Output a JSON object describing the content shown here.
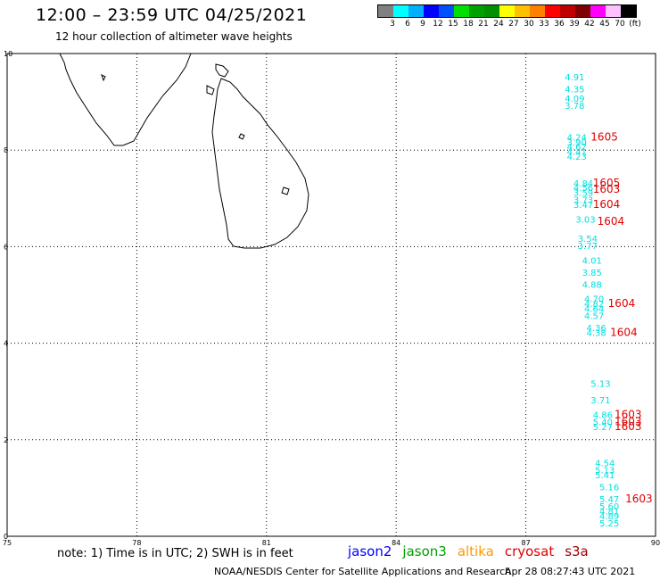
{
  "header": {
    "title": "12:00 – 23:59 UTC 04/25/2021",
    "subtitle": "12 hour collection of altimeter wave heights"
  },
  "legend": {
    "colors": [
      "#808080",
      "#00ffff",
      "#00b0ff",
      "#0000ff",
      "#0050ff",
      "#00e000",
      "#00a000",
      "#009000",
      "#ffff00",
      "#ffc000",
      "#ff8000",
      "#ff0000",
      "#c00000",
      "#800000",
      "#ff00ff",
      "#ffc0ff",
      "#000000"
    ],
    "labels": [
      "3",
      "6",
      "9",
      "12",
      "15",
      "18",
      "21",
      "24",
      "27",
      "30",
      "33",
      "36",
      "39",
      "42",
      "45",
      "70",
      "(ft)"
    ]
  },
  "map": {
    "lon_range": [
      75,
      90
    ],
    "lat_range": [
      0,
      10
    ],
    "x_ticks": [
      "75",
      "78",
      "81",
      "84",
      "87",
      "90"
    ],
    "y_ticks": [
      "0",
      "2",
      "4",
      "6",
      "8",
      "10"
    ],
    "grid": true,
    "swh_readings": [
      {
        "lon": 87.9,
        "lat": 9.45,
        "text": "4.91",
        "color": "#00e0e0"
      },
      {
        "lon": 87.9,
        "lat": 9.2,
        "text": "4.35",
        "color": "#00e0e0"
      },
      {
        "lon": 87.9,
        "lat": 9.0,
        "text": "4.09",
        "color": "#00e0e0"
      },
      {
        "lon": 87.9,
        "lat": 8.85,
        "text": "3.78",
        "color": "#00e0e0"
      },
      {
        "lon": 87.95,
        "lat": 8.2,
        "text": "4.24",
        "color": "#00e0e0"
      },
      {
        "lon": 87.95,
        "lat": 8.1,
        "text": "3.90",
        "color": "#00e0e0"
      },
      {
        "lon": 87.95,
        "lat": 8.0,
        "text": "4.62",
        "color": "#00e0e0"
      },
      {
        "lon": 87.95,
        "lat": 7.9,
        "text": "4.41",
        "color": "#00e0e0"
      },
      {
        "lon": 87.95,
        "lat": 7.8,
        "text": "4.23",
        "color": "#00e0e0"
      },
      {
        "lon": 88.1,
        "lat": 7.25,
        "text": "4.84",
        "color": "#00e0e0"
      },
      {
        "lon": 88.1,
        "lat": 7.15,
        "text": "4.56",
        "color": "#00e0e0"
      },
      {
        "lon": 88.1,
        "lat": 7.05,
        "text": "3.59",
        "color": "#00e0e0"
      },
      {
        "lon": 88.1,
        "lat": 6.9,
        "text": "3.73",
        "color": "#00e0e0"
      },
      {
        "lon": 88.1,
        "lat": 6.8,
        "text": "3.47",
        "color": "#00e0e0"
      },
      {
        "lon": 88.15,
        "lat": 6.5,
        "text": "3.03",
        "color": "#00e0e0"
      },
      {
        "lon": 88.2,
        "lat": 6.1,
        "text": "3.54",
        "color": "#00e0e0"
      },
      {
        "lon": 88.2,
        "lat": 5.95,
        "text": "3.77",
        "color": "#00e0e0"
      },
      {
        "lon": 88.3,
        "lat": 5.65,
        "text": "4.01",
        "color": "#00e0e0"
      },
      {
        "lon": 88.3,
        "lat": 5.4,
        "text": "3.85",
        "color": "#00e0e0"
      },
      {
        "lon": 88.3,
        "lat": 5.15,
        "text": "4.88",
        "color": "#00e0e0"
      },
      {
        "lon": 88.35,
        "lat": 4.85,
        "text": "4.70",
        "color": "#00e0e0"
      },
      {
        "lon": 88.35,
        "lat": 4.75,
        "text": "4.82",
        "color": "#00e0e0"
      },
      {
        "lon": 88.35,
        "lat": 4.65,
        "text": "4.64",
        "color": "#00e0e0"
      },
      {
        "lon": 88.35,
        "lat": 4.5,
        "text": "4.57",
        "color": "#00e0e0"
      },
      {
        "lon": 88.4,
        "lat": 4.25,
        "text": "4.36",
        "color": "#00e0e0"
      },
      {
        "lon": 88.4,
        "lat": 4.15,
        "text": "4.38",
        "color": "#00e0e0"
      },
      {
        "lon": 88.5,
        "lat": 3.1,
        "text": "5.13",
        "color": "#00e0e0"
      },
      {
        "lon": 88.5,
        "lat": 2.75,
        "text": "3.71",
        "color": "#00e0e0"
      },
      {
        "lon": 88.55,
        "lat": 2.45,
        "text": "4.86",
        "color": "#00e0e0"
      },
      {
        "lon": 88.55,
        "lat": 2.3,
        "text": "5.40",
        "color": "#00e0e0"
      },
      {
        "lon": 88.55,
        "lat": 2.2,
        "text": "5.27",
        "color": "#00e0e0"
      },
      {
        "lon": 88.6,
        "lat": 1.45,
        "text": "4.54",
        "color": "#00e0e0"
      },
      {
        "lon": 88.6,
        "lat": 1.3,
        "text": "5.13",
        "color": "#00e0e0"
      },
      {
        "lon": 88.6,
        "lat": 1.2,
        "text": "5.41",
        "color": "#00e0e0"
      },
      {
        "lon": 88.7,
        "lat": 0.95,
        "text": "5.16",
        "color": "#00e0e0"
      },
      {
        "lon": 88.7,
        "lat": 0.7,
        "text": "5.47",
        "color": "#00e0e0"
      },
      {
        "lon": 88.7,
        "lat": 0.55,
        "text": "5.60",
        "color": "#00e0e0"
      },
      {
        "lon": 88.7,
        "lat": 0.45,
        "text": "4.81",
        "color": "#00e0e0"
      },
      {
        "lon": 88.7,
        "lat": 0.35,
        "text": "4.89",
        "color": "#00e0e0"
      },
      {
        "lon": 88.7,
        "lat": 0.2,
        "text": "5.25",
        "color": "#00e0e0"
      }
    ],
    "pass_labels": [
      {
        "lon": 88.5,
        "lat": 8.2,
        "text": "1605",
        "color": "#e00000"
      },
      {
        "lon": 88.55,
        "lat": 7.25,
        "text": "1605",
        "color": "#e00000"
      },
      {
        "lon": 88.55,
        "lat": 7.12,
        "text": "1603",
        "color": "#e00000"
      },
      {
        "lon": 88.55,
        "lat": 6.8,
        "text": "1604",
        "color": "#e00000"
      },
      {
        "lon": 88.65,
        "lat": 6.45,
        "text": "1604",
        "color": "#e00000"
      },
      {
        "lon": 88.9,
        "lat": 4.75,
        "text": "1604",
        "color": "#e00000"
      },
      {
        "lon": 88.95,
        "lat": 4.15,
        "text": "1604",
        "color": "#e00000"
      },
      {
        "lon": 89.05,
        "lat": 2.45,
        "text": "1603",
        "color": "#e00000"
      },
      {
        "lon": 89.05,
        "lat": 2.3,
        "text": "1603",
        "color": "#e00000"
      },
      {
        "lon": 89.05,
        "lat": 2.2,
        "text": "1603",
        "color": "#e00000"
      },
      {
        "lon": 89.3,
        "lat": 0.7,
        "text": "1603",
        "color": "#e00000"
      }
    ]
  },
  "footer": {
    "note": "note:  1) Time is in UTC; 2) SWH is in feet",
    "satellites": [
      {
        "name": "jason2",
        "color": "#0000ff"
      },
      {
        "name": "jason3",
        "color": "#00a000"
      },
      {
        "name": "altika",
        "color": "#ff9900"
      },
      {
        "name": "cryosat",
        "color": "#e00000"
      },
      {
        "name": "s3a",
        "color": "#a00000"
      }
    ],
    "credit": "NOAA/NESDIS Center for Satellite Applications and Research",
    "timestamp": "Apr 28 08:27:43 UTC 2021"
  }
}
